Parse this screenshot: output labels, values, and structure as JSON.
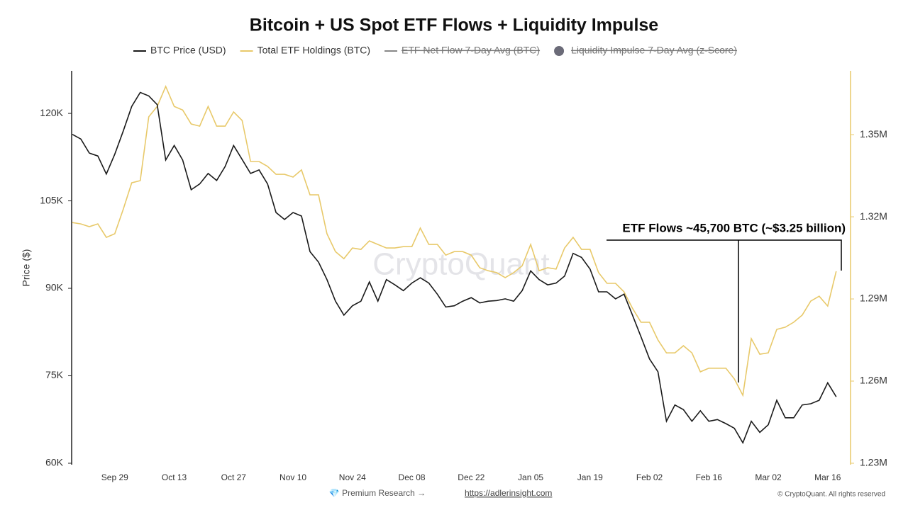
{
  "chart_data": {
    "type": "line",
    "title": "Bitcoin + US Spot ETF Flows + Liquidity Impulse",
    "ylabel": "Price ($)",
    "watermark": "CryptoQuant",
    "footer": "💎 Premium Research →",
    "footer_link": "https://adlerinsight.com",
    "credit": "© CryptoQuant. All rights reserved",
    "annotation": "ETF Flows ~45,700 BTC (~$3.25 billion)",
    "categories": [
      null,
      null,
      null,
      null,
      null,
      "Sep 29",
      null,
      null,
      null,
      null,
      null,
      null,
      "Oct 13",
      null,
      null,
      null,
      null,
      null,
      null,
      "Oct 27",
      null,
      null,
      null,
      null,
      null,
      null,
      "Nov 10",
      null,
      null,
      null,
      null,
      null,
      null,
      "Nov 24",
      null,
      null,
      null,
      null,
      null,
      null,
      "Dec 08",
      null,
      null,
      null,
      null,
      null,
      null,
      "Dec 22",
      null,
      null,
      null,
      null,
      null,
      null,
      "Jan 05",
      null,
      null,
      null,
      null,
      null,
      null,
      "Jan 19",
      null,
      null,
      null,
      null,
      null,
      null,
      "Feb 02",
      null,
      null,
      null,
      null,
      null,
      null,
      "Feb 16",
      null,
      null,
      null,
      null,
      null,
      null,
      "Mar 02",
      null,
      null,
      null,
      null,
      null,
      null,
      "Mar 16",
      null
    ],
    "series": [
      {
        "name": "BTC Price (USD)",
        "color": "#1a1a1a",
        "values": [
          116400,
          115600,
          113200,
          112700,
          109600,
          113000,
          117000,
          121200,
          123600,
          123000,
          121500,
          112000,
          114500,
          112000,
          106900,
          107900,
          109700,
          108500,
          110900,
          114500,
          112100,
          109700,
          110300,
          107900,
          103000,
          101800,
          103000,
          102400,
          96300,
          94500,
          91500,
          87800,
          85400,
          87000,
          87800,
          91100,
          87800,
          91500,
          90600,
          89600,
          90900,
          91800,
          90900,
          89000,
          86800,
          87000,
          87800,
          88400,
          87500,
          87800,
          87900,
          88200,
          87800,
          89600,
          93000,
          91500,
          90600,
          90900,
          92100,
          96000,
          95300,
          93300,
          89400,
          89400,
          88200,
          89000,
          85400,
          81700,
          77900,
          75700,
          67200,
          70000,
          69200,
          67200,
          69000,
          67200,
          67500,
          66800,
          66000,
          63500,
          67200,
          65300,
          66600,
          70800,
          67800,
          67800,
          70000,
          70200,
          70800,
          73800,
          71400
        ]
      },
      {
        "name": "Total ETF Holdings (BTC)",
        "color": "#e8c96a",
        "axis": "y2",
        "values": [
          1317900,
          1317400,
          1316400,
          1317400,
          1312500,
          1313800,
          1322800,
          1332400,
          1333200,
          1356500,
          1360300,
          1367600,
          1360300,
          1359000,
          1353900,
          1353100,
          1360300,
          1353100,
          1353100,
          1358300,
          1355200,
          1340200,
          1340200,
          1338400,
          1335500,
          1335500,
          1334500,
          1337100,
          1328000,
          1328000,
          1313800,
          1307300,
          1304700,
          1308600,
          1308100,
          1311200,
          1309900,
          1308600,
          1308600,
          1309100,
          1309100,
          1315900,
          1309900,
          1309900,
          1306000,
          1307300,
          1307300,
          1306000,
          1301400,
          1300300,
          1299600,
          1297800,
          1299600,
          1302100,
          1309900,
          1300300,
          1301400,
          1300900,
          1308600,
          1312500,
          1308100,
          1308100,
          1299600,
          1295700,
          1295700,
          1292600,
          1286600,
          1281500,
          1281500,
          1275000,
          1270300,
          1270300,
          1272900,
          1270300,
          1263400,
          1264700,
          1264700,
          1264700,
          1260800,
          1254800,
          1275500,
          1269800,
          1270300,
          1278900,
          1279700,
          1281500,
          1284100,
          1289200,
          1291000,
          1287400,
          1300100
        ]
      }
    ],
    "legend_hidden": [
      {
        "name": "ETF Net Flow 7-Day Avg (BTC)",
        "color": "#888888",
        "marker": "line"
      },
      {
        "name": "Liquidity Impulse 7-Day Avg (z-Score)",
        "color": "#6b6b78",
        "marker": "circle"
      }
    ],
    "ylim": [
      60000,
      127300
    ],
    "yticks": [
      {
        "value": 60000,
        "label": "60K"
      },
      {
        "value": 75000,
        "label": "75K"
      },
      {
        "value": 90000,
        "label": "90K"
      },
      {
        "value": 105000,
        "label": "105K"
      },
      {
        "value": 120000,
        "label": "120K"
      }
    ],
    "y2lim": [
      1230000,
      1373300
    ],
    "y2ticks": [
      {
        "value": 1230000,
        "label": "1.23M"
      },
      {
        "value": 1260000,
        "label": "1.26M"
      },
      {
        "value": 1290000,
        "label": "1.29M"
      },
      {
        "value": 1320000,
        "label": "1.32M"
      },
      {
        "value": 1350000,
        "label": "1.35M"
      }
    ],
    "grid": false
  }
}
